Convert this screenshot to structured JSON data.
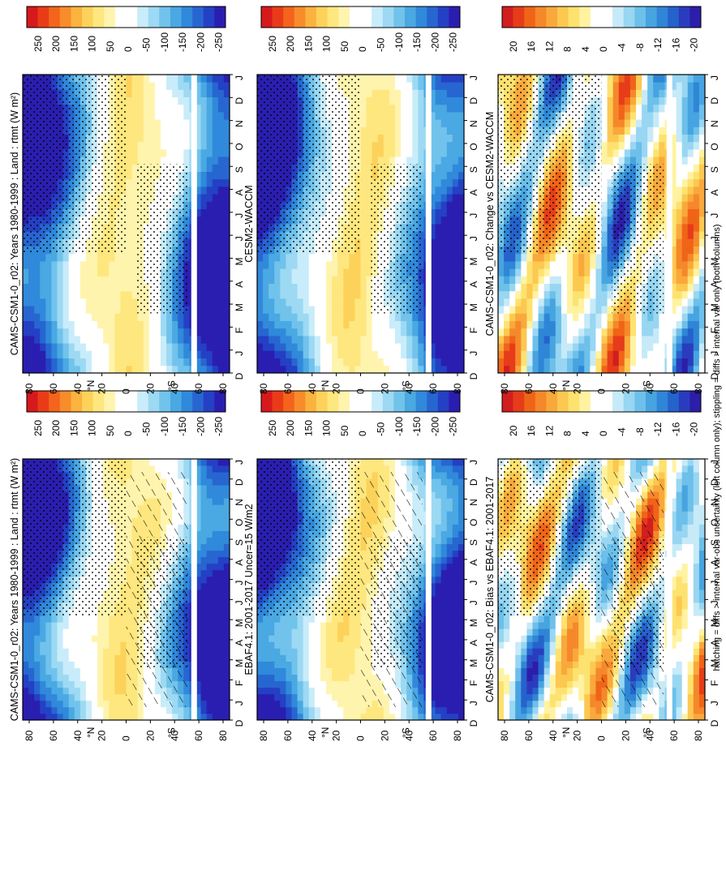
{
  "chart_data": {
    "type": "heatmap",
    "orientation_note": "rotated 90 degrees counter-clockwise",
    "footnote": "hatching = diffs > internal var-obs uncertainty (left column only); stippling = diffs > internal var only (both columns)",
    "months": [
      "D",
      "J",
      "F",
      "M",
      "A",
      "M",
      "J",
      "J",
      "A",
      "S",
      "O",
      "N",
      "D",
      "J"
    ],
    "lat_ticks": [
      "80",
      "60",
      "40",
      "20",
      "0",
      "20",
      "40",
      "60",
      "80"
    ],
    "lat_hemi": [
      "°N",
      "°S"
    ],
    "colorbar_wide": [
      "250",
      "200",
      "150",
      "100",
      "50",
      "0",
      "-50",
      "-100",
      "-150",
      "-200",
      "-250"
    ],
    "colorbar_diff": [
      "20",
      "16",
      "12",
      "8",
      "4",
      "0",
      "-4",
      "-8",
      "-12",
      "-16",
      "-20"
    ],
    "panels": [
      {
        "id": "p1",
        "title": "CAMS-CSM1-0_r02: Years 1980-1999 : Land : rtmt (W m²)",
        "kind": "clim",
        "hatch": true
      },
      {
        "id": "p2",
        "title": "CAMS-CSM1-0_r02: Years 1980-1999 : Land : rtmt (W m²)",
        "kind": "clim",
        "hatch": false
      },
      {
        "id": "p3",
        "title": "EBAF4.1: 2001-2017 Uncer=15 W/m2",
        "kind": "clim",
        "hatch": true
      },
      {
        "id": "p4",
        "title": "CESM2-WACCM",
        "kind": "clim",
        "hatch": false
      },
      {
        "id": "p5",
        "title": "CAMS-CSM1-0_r02: Bias vs EBAF4.1: 2001-2017",
        "kind": "diff",
        "hatch": true
      },
      {
        "id": "p6",
        "title": "CAMS-CSM1-0_r02: Change vs CESM2-WACCM",
        "kind": "diff",
        "hatch": false
      }
    ],
    "colors": {
      "wide": [
        "#d7191c",
        "#ea3b18",
        "#f4641c",
        "#f98c2a",
        "#fcb23e",
        "#fdd25a",
        "#fee77e",
        "#fff4ad",
        "#ffffff",
        "#ffffff",
        "#c8ecfa",
        "#9dd9f3",
        "#71c3ec",
        "#4aa8e2",
        "#3089da",
        "#2766d0",
        "#2440c4",
        "#2a1eb0"
      ],
      "diff": [
        "#d21e1e",
        "#e63c1a",
        "#f06418",
        "#f5882a",
        "#f9a83c",
        "#fcc850",
        "#fde270",
        "#fff3a2",
        "#ffffff",
        "#ffffff",
        "#c6eaf8",
        "#98d6f2",
        "#6cc0ea",
        "#47a4e0",
        "#2f86d6",
        "#2662cc",
        "#2a3cbe",
        "#2c1ea8"
      ]
    }
  }
}
